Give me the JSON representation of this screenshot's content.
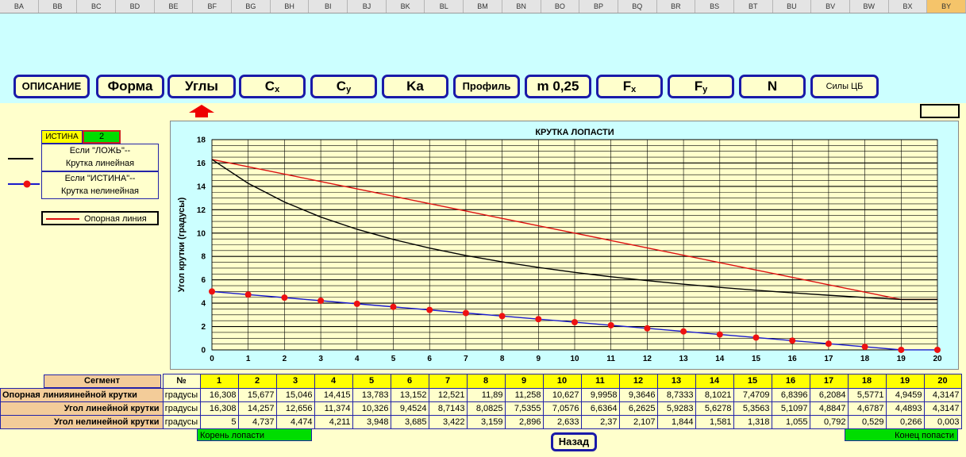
{
  "columns": [
    "BA",
    "BB",
    "BC",
    "BD",
    "BE",
    "BF",
    "BG",
    "BH",
    "BI",
    "BJ",
    "BK",
    "BL",
    "BM",
    "BN",
    "BO",
    "BP",
    "BQ",
    "BR",
    "BS",
    "BT",
    "BU",
    "BV",
    "BW",
    "BX",
    "BY"
  ],
  "selected_column": "BY",
  "nav_buttons": [
    {
      "label": "ОПИСАНИЕ",
      "sub": ""
    },
    {
      "label": "Форма",
      "sub": ""
    },
    {
      "label": "Углы",
      "sub": ""
    },
    {
      "label": "C",
      "sub": "x"
    },
    {
      "label": "C",
      "sub": "y"
    },
    {
      "label": "Ka",
      "sub": ""
    },
    {
      "label": "Профиль",
      "sub": ""
    },
    {
      "label": "m 0,25",
      "sub": ""
    },
    {
      "label": "F",
      "sub": "x"
    },
    {
      "label": "F",
      "sub": "y"
    },
    {
      "label": "N",
      "sub": ""
    },
    {
      "label": "Силы ЦБ",
      "sub": ""
    }
  ],
  "active_arrow_color": "#ee0000",
  "legend": {
    "flag_label": "ИСТИНА",
    "flag_value": "2",
    "false_text_1": "Если \"ЛОЖЬ\"--",
    "false_text_2": "Крутка линейная",
    "true_text_1": "Если \"ИСТИНА\"--",
    "true_text_2": "Крутка нелинейная",
    "ref_text": "Опорная линия"
  },
  "chart_data": {
    "type": "line",
    "title": "КРУТКА ЛОПАСТИ",
    "ylabel": "Угол крутки    (градусы)",
    "xlabel": "",
    "ylim": [
      0,
      18
    ],
    "yticks": [
      0,
      2,
      4,
      6,
      8,
      10,
      12,
      14,
      16,
      18
    ],
    "x": [
      0,
      1,
      2,
      3,
      4,
      5,
      6,
      7,
      8,
      9,
      10,
      11,
      12,
      13,
      14,
      15,
      16,
      17,
      18,
      19,
      20
    ],
    "xticklabels": [
      "0",
      "1",
      "2",
      "3",
      "4",
      "5",
      "6",
      "7",
      "8",
      "9",
      "10",
      "11",
      "12",
      "13",
      "14",
      "15",
      "16",
      "17",
      "18",
      "19",
      "20"
    ],
    "grid": true,
    "series": [
      {
        "color": "#dd1111",
        "marker": false,
        "values": [
          16.308,
          15.677,
          15.046,
          14.415,
          13.783,
          13.152,
          12.521,
          11.89,
          11.258,
          10.627,
          9.9958,
          9.3646,
          8.7333,
          8.1021,
          7.4709,
          6.8396,
          6.2084,
          5.5771,
          4.9459,
          4.3147,
          4.3147
        ]
      },
      {
        "color": "#000000",
        "marker": false,
        "values": [
          16.308,
          14.257,
          12.656,
          11.374,
          10.326,
          9.4524,
          8.7143,
          8.0825,
          7.5355,
          7.0576,
          6.6364,
          6.2625,
          5.9283,
          5.6278,
          5.3563,
          5.1097,
          4.8847,
          4.6787,
          4.4893,
          4.3147,
          4.3147
        ]
      },
      {
        "color": "#1a1acc",
        "marker": true,
        "marker_color": "#ee1111",
        "values": [
          5,
          4.737,
          4.474,
          4.211,
          3.948,
          3.685,
          3.422,
          3.159,
          2.896,
          2.633,
          2.37,
          2.107,
          1.844,
          1.581,
          1.318,
          1.055,
          0.792,
          0.529,
          0.266,
          0.003,
          0.003
        ]
      }
    ]
  },
  "table": {
    "segment_label": "Сегмент",
    "num_label": "№",
    "segments": [
      "1",
      "2",
      "3",
      "4",
      "5",
      "6",
      "7",
      "8",
      "9",
      "10",
      "11",
      "12",
      "13",
      "14",
      "15",
      "16",
      "17",
      "18",
      "19",
      "20"
    ],
    "rows": [
      {
        "label": "Опорная линияинейной крутки",
        "unit": "градусы",
        "values": [
          "16,308",
          "15,677",
          "15,046",
          "14,415",
          "13,783",
          "13,152",
          "12,521",
          "11,89",
          "11,258",
          "10,627",
          "9,9958",
          "9,3646",
          "8,7333",
          "8,1021",
          "7,4709",
          "6,8396",
          "6,2084",
          "5,5771",
          "4,9459",
          "4,3147"
        ]
      },
      {
        "label": "Угол линейной крутки",
        "unit": "градусы",
        "values": [
          "16,308",
          "14,257",
          "12,656",
          "11,374",
          "10,326",
          "9,4524",
          "8,7143",
          "8,0825",
          "7,5355",
          "7,0576",
          "6,6364",
          "6,2625",
          "5,9283",
          "5,6278",
          "5,3563",
          "5,1097",
          "4,8847",
          "4,6787",
          "4,4893",
          "4,3147"
        ]
      },
      {
        "label": "Угол нелинейной крутки",
        "unit": "градусы",
        "values": [
          "5",
          "4,737",
          "4,474",
          "4,211",
          "3,948",
          "3,685",
          "3,422",
          "3,159",
          "2,896",
          "2,633",
          "2,37",
          "2,107",
          "1,844",
          "1,581",
          "1,318",
          "1,055",
          "0,792",
          "0,529",
          "0,266",
          "0,003"
        ]
      }
    ],
    "root_label": "Корень лопасти",
    "tip_label": "Конец попасти"
  },
  "back_button": "Назад"
}
